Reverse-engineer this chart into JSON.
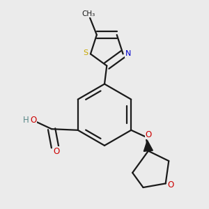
{
  "background_color": "#ebebeb",
  "bond_color": "#1a1a1a",
  "S_color": "#c8a800",
  "N_color": "#0000cc",
  "O_color": "#cc0000",
  "H_color": "#5a8888",
  "line_width": 1.6,
  "fig_size": [
    3.0,
    3.0
  ],
  "dpi": 100,
  "xlim": [
    0.05,
    0.95
  ],
  "ylim": [
    0.05,
    0.95
  ]
}
